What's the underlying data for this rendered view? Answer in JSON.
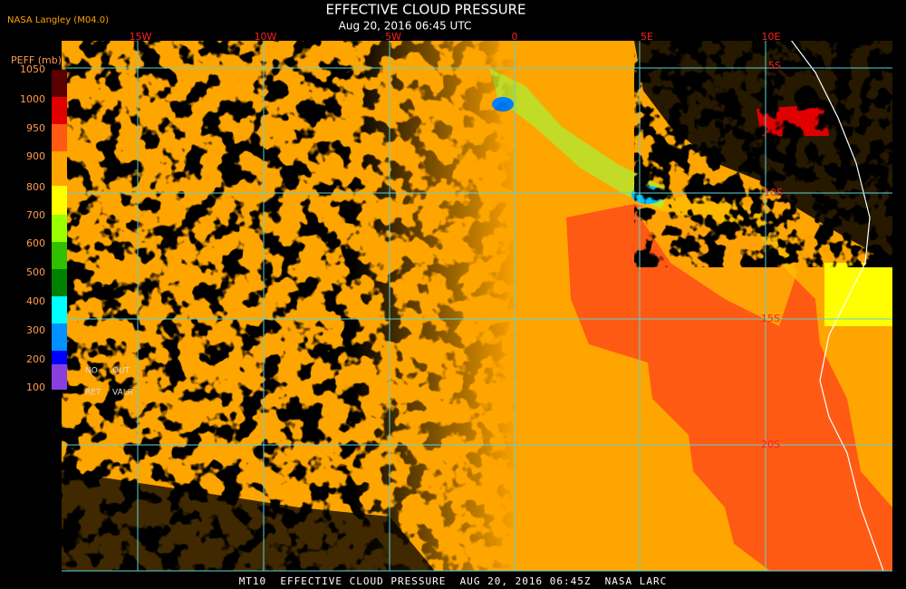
{
  "header": {
    "source": "NASA Langley (M04.0)",
    "title": "EFFECTIVE CLOUD PRESSURE",
    "subtitle": "Aug 20, 2016 06:45 UTC"
  },
  "colorbar": {
    "label": "PEFF (mb)",
    "ticks": [
      "1050",
      "1000",
      "950",
      "900",
      "800",
      "700",
      "600",
      "500",
      "400",
      "300",
      "200",
      "100"
    ],
    "legend": [
      "NO",
      "OUT",
      "RET",
      "VALR"
    ]
  },
  "grid": {
    "longitudes": [
      "15W",
      "10W",
      "5W",
      "0",
      "5E",
      "10E"
    ],
    "latitudes": [
      "5S",
      "10S",
      "15S",
      "20S"
    ]
  },
  "footer": "MT10  EFFECTIVE CLOUD PRESSURE  AUG 20, 2016 06:45Z  NASA LARC"
}
